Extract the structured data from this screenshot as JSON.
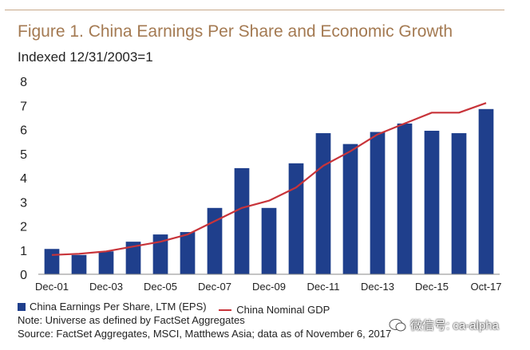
{
  "title": "Figure 1. China Earnings Per Share and Economic Growth",
  "subtitle": "Indexed 12/31/2003=1",
  "legend": {
    "eps": "China Earnings Per Share, LTM (EPS)",
    "gdp": "China Nominal GDP"
  },
  "note": "Note: Universe as defined by FactSet Aggregates",
  "source": "Source: FactSet Aggregates, MSCI, Matthews Asia; data as of November 6, 2017",
  "watermark": "微信号: ca-alpha",
  "colors": {
    "bar": "#1f3f8c",
    "line": "#c8343a",
    "title": "#a47a52"
  },
  "chart_data": {
    "type": "bar",
    "ylim": [
      0,
      8
    ],
    "yticks": [
      0,
      1,
      2,
      3,
      4,
      5,
      6,
      7,
      8
    ],
    "xtick_labels": [
      "Dec-01",
      "Dec-03",
      "Dec-05",
      "Dec-07",
      "Dec-09",
      "Dec-11",
      "Dec-13",
      "Dec-15",
      "Oct-17"
    ],
    "xtick_positions": [
      0,
      2,
      4,
      6,
      8,
      10,
      12,
      14,
      16
    ],
    "series": [
      {
        "name": "China Earnings Per Share, LTM (EPS)",
        "type": "bar",
        "values": [
          1.05,
          0.8,
          0.95,
          1.35,
          1.65,
          1.75,
          2.75,
          4.4,
          2.75,
          4.6,
          5.85,
          5.4,
          5.9,
          6.25,
          5.95,
          5.85,
          6.85
        ]
      },
      {
        "name": "China Nominal GDP",
        "type": "line",
        "x": [
          0,
          1,
          2,
          3,
          4,
          5,
          6,
          7,
          8,
          9,
          10,
          11,
          12,
          13,
          14,
          15,
          16
        ],
        "values": [
          0.8,
          0.85,
          0.95,
          1.15,
          1.35,
          1.65,
          2.2,
          2.75,
          3.05,
          3.6,
          4.5,
          5.1,
          5.8,
          6.25,
          6.7,
          6.7,
          7.1
        ]
      }
    ]
  }
}
